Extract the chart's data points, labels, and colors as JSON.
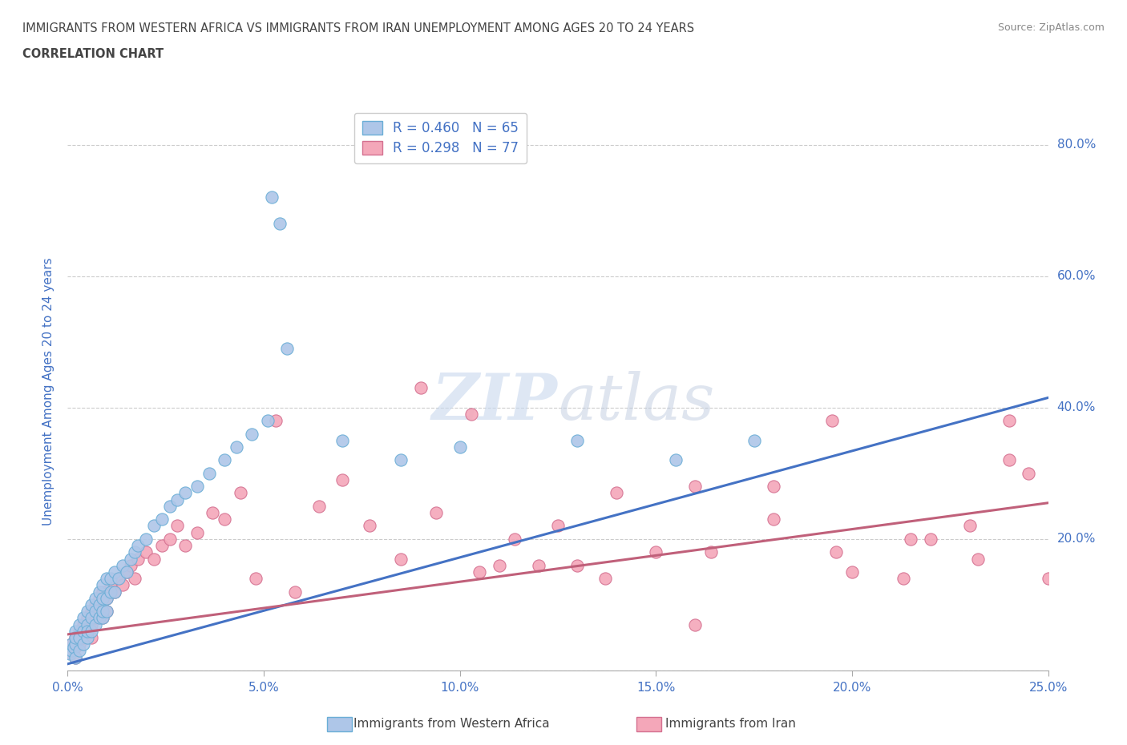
{
  "title_line1": "IMMIGRANTS FROM WESTERN AFRICA VS IMMIGRANTS FROM IRAN UNEMPLOYMENT AMONG AGES 20 TO 24 YEARS",
  "title_line2": "CORRELATION CHART",
  "source_text": "Source: ZipAtlas.com",
  "ylabel": "Unemployment Among Ages 20 to 24 years",
  "xlim": [
    0.0,
    0.25
  ],
  "ylim": [
    0.0,
    0.85
  ],
  "xticks": [
    0.0,
    0.05,
    0.1,
    0.15,
    0.2,
    0.25
  ],
  "yticks": [
    0.0,
    0.2,
    0.4,
    0.6,
    0.8
  ],
  "series1_color": "#aec6e8",
  "series1_edge": "#6aaed6",
  "series1_line_color": "#4472c4",
  "series2_color": "#f4a7b9",
  "series2_edge": "#d47090",
  "series2_line_color": "#c0607a",
  "watermark_zip": "ZIP",
  "watermark_atlas": "atlas",
  "background_color": "#ffffff",
  "grid_color": "#cccccc",
  "title_color": "#555555",
  "axis_label_color": "#4472c4",
  "tick_label_color": "#4472c4",
  "R1": 0.46,
  "N1": 65,
  "R2": 0.298,
  "N2": 77,
  "legend1_label": "Immigrants from Western Africa",
  "legend2_label": "Immigrants from Iran",
  "trend1_x0": 0.0,
  "trend1_y0": 0.01,
  "trend1_x1": 0.25,
  "trend1_y1": 0.415,
  "trend2_x0": 0.0,
  "trend2_y0": 0.055,
  "trend2_x1": 0.25,
  "trend2_y1": 0.255,
  "s1_x": [
    0.0005,
    0.001,
    0.001,
    0.0015,
    0.002,
    0.002,
    0.002,
    0.002,
    0.003,
    0.003,
    0.003,
    0.004,
    0.004,
    0.004,
    0.005,
    0.005,
    0.005,
    0.005,
    0.006,
    0.006,
    0.006,
    0.007,
    0.007,
    0.007,
    0.008,
    0.008,
    0.008,
    0.009,
    0.009,
    0.009,
    0.009,
    0.01,
    0.01,
    0.01,
    0.011,
    0.011,
    0.012,
    0.012,
    0.013,
    0.014,
    0.015,
    0.016,
    0.017,
    0.018,
    0.02,
    0.022,
    0.024,
    0.026,
    0.028,
    0.03,
    0.033,
    0.036,
    0.04,
    0.043,
    0.047,
    0.051,
    0.056,
    0.052,
    0.054,
    0.07,
    0.085,
    0.1,
    0.13,
    0.155,
    0.175
  ],
  "s1_y": [
    0.025,
    0.03,
    0.04,
    0.035,
    0.02,
    0.04,
    0.06,
    0.05,
    0.03,
    0.07,
    0.05,
    0.04,
    0.06,
    0.08,
    0.05,
    0.07,
    0.09,
    0.06,
    0.06,
    0.08,
    0.1,
    0.07,
    0.09,
    0.11,
    0.08,
    0.1,
    0.12,
    0.08,
    0.09,
    0.11,
    0.13,
    0.09,
    0.11,
    0.14,
    0.12,
    0.14,
    0.12,
    0.15,
    0.14,
    0.16,
    0.15,
    0.17,
    0.18,
    0.19,
    0.2,
    0.22,
    0.23,
    0.25,
    0.26,
    0.27,
    0.28,
    0.3,
    0.32,
    0.34,
    0.36,
    0.38,
    0.49,
    0.72,
    0.68,
    0.35,
    0.32,
    0.34,
    0.35,
    0.32,
    0.35
  ],
  "s2_x": [
    0.0005,
    0.001,
    0.001,
    0.002,
    0.002,
    0.002,
    0.003,
    0.003,
    0.004,
    0.004,
    0.005,
    0.005,
    0.006,
    0.006,
    0.006,
    0.007,
    0.007,
    0.008,
    0.008,
    0.009,
    0.009,
    0.01,
    0.01,
    0.011,
    0.012,
    0.013,
    0.014,
    0.015,
    0.016,
    0.017,
    0.018,
    0.02,
    0.022,
    0.024,
    0.026,
    0.028,
    0.03,
    0.033,
    0.037,
    0.04,
    0.044,
    0.048,
    0.053,
    0.058,
    0.064,
    0.07,
    0.077,
    0.085,
    0.094,
    0.103,
    0.114,
    0.125,
    0.137,
    0.15,
    0.164,
    0.18,
    0.196,
    0.213,
    0.232,
    0.245,
    0.25,
    0.09,
    0.105,
    0.12,
    0.14,
    0.16,
    0.18,
    0.2,
    0.22,
    0.195,
    0.215,
    0.23,
    0.24,
    0.11,
    0.13,
    0.16,
    0.24
  ],
  "s2_y": [
    0.03,
    0.025,
    0.04,
    0.035,
    0.05,
    0.02,
    0.04,
    0.06,
    0.05,
    0.07,
    0.06,
    0.08,
    0.07,
    0.09,
    0.05,
    0.08,
    0.1,
    0.09,
    0.11,
    0.08,
    0.12,
    0.09,
    0.11,
    0.13,
    0.12,
    0.14,
    0.13,
    0.15,
    0.16,
    0.14,
    0.17,
    0.18,
    0.17,
    0.19,
    0.2,
    0.22,
    0.19,
    0.21,
    0.24,
    0.23,
    0.27,
    0.14,
    0.38,
    0.12,
    0.25,
    0.29,
    0.22,
    0.17,
    0.24,
    0.39,
    0.2,
    0.22,
    0.14,
    0.18,
    0.18,
    0.23,
    0.18,
    0.14,
    0.17,
    0.3,
    0.14,
    0.43,
    0.15,
    0.16,
    0.27,
    0.28,
    0.28,
    0.15,
    0.2,
    0.38,
    0.2,
    0.22,
    0.32,
    0.16,
    0.16,
    0.07,
    0.38
  ]
}
